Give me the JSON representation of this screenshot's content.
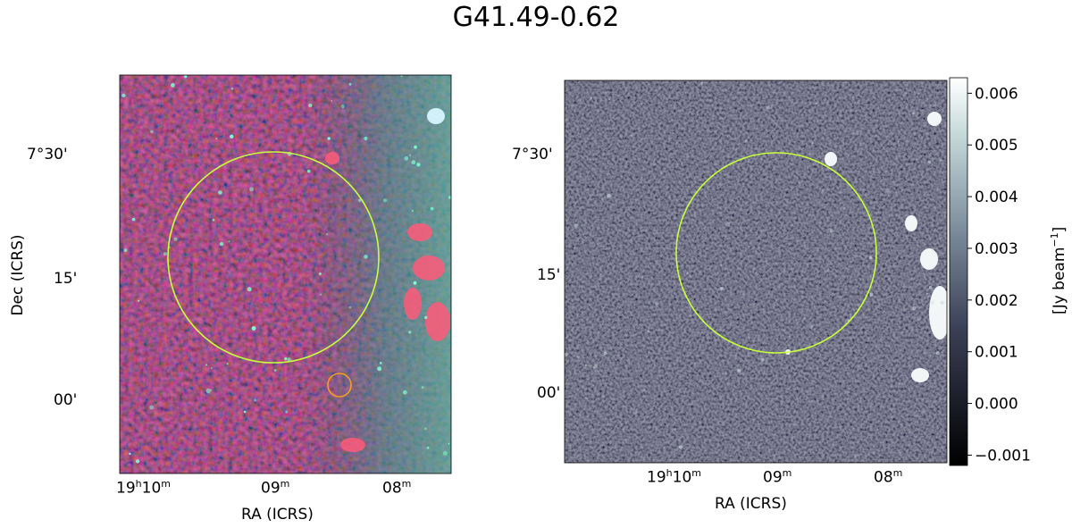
{
  "figure": {
    "title": "G41.49-0.62",
    "left_panel": {
      "xlabel": "RA (ICRS)",
      "ylabel": "Dec (ICRS)",
      "x_ticks": [
        {
          "h": "19",
          "m": "10"
        },
        {
          "m": "09"
        },
        {
          "m": "08"
        }
      ],
      "y_ticks": [
        "7°30'",
        "15'",
        "00'"
      ],
      "image": "infrared-composite-rgb",
      "overlays": [
        {
          "name": "snr-circle",
          "color": "#c8ff3c"
        },
        {
          "name": "source-circle",
          "color": "#f0a020"
        }
      ]
    },
    "right_panel": {
      "xlabel": "RA (ICRS)",
      "y_ticks": [
        "7°30'",
        "15'",
        "00'"
      ],
      "x_ticks": [
        {
          "h": "19",
          "m": "10"
        },
        {
          "m": "09"
        },
        {
          "m": "08"
        }
      ],
      "image": "radio-continuum-grayscale",
      "overlays": [
        {
          "name": "snr-circle",
          "color": "#c8ff3c"
        }
      ],
      "colorbar": {
        "label": "[Jy beam",
        "label_exp": "−1",
        "label_close": "]",
        "ticks": [
          "0.006",
          "0.005",
          "0.004",
          "0.003",
          "0.002",
          "0.001",
          "0.000",
          "−0.001"
        ],
        "range": [
          -0.0012,
          0.0063
        ]
      }
    }
  }
}
